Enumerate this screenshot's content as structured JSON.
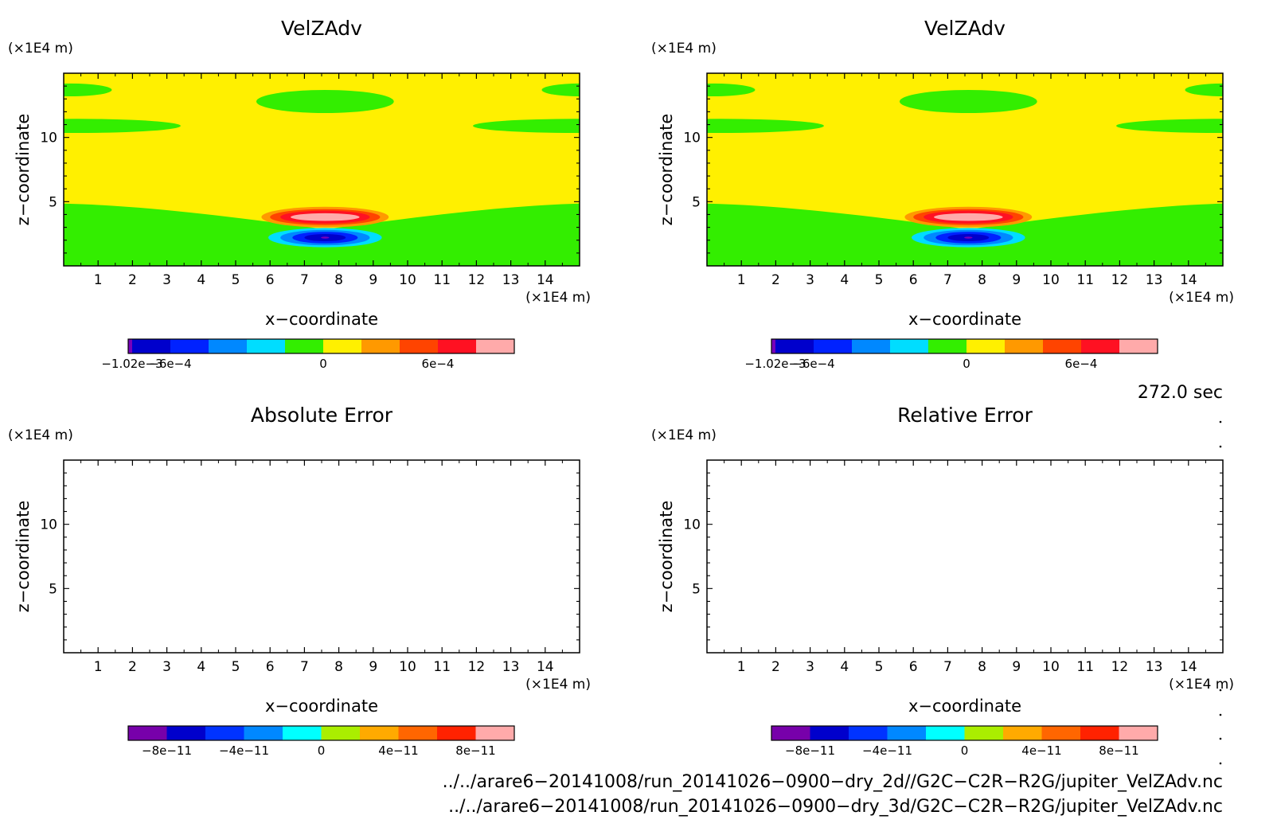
{
  "chart_data": [
    {
      "type": "heatmap",
      "title": "VelZAdv",
      "xlabel": "x−coordinate",
      "ylabel": "z−coordinate",
      "x_unit": "(×1E4 m)",
      "y_unit": "(×1E4 m)",
      "xlim": [
        0,
        15
      ],
      "ylim": [
        0,
        15
      ],
      "xticks": [
        "1",
        "2",
        "3",
        "4",
        "5",
        "6",
        "7",
        "8",
        "9",
        "10",
        "11",
        "12",
        "13",
        "14"
      ],
      "yticks": [
        "5",
        "10"
      ],
      "colorbar": {
        "ticks": [
          {
            "value": -0.00102,
            "label": "−1.02e−3"
          },
          {
            "value": -0.0006,
            "label": "−6e−4"
          },
          {
            "value": 0,
            "label": "0"
          },
          {
            "value": 0.0006,
            "label": "6e−4"
          }
        ]
      },
      "contours": [
        {
          "level": "0 to 1e-4",
          "color": "#fff000",
          "region": "upper domain background"
        },
        {
          "level": "-1e-4 to 0",
          "color": "#33ee00",
          "region": "lower domain and upper patches"
        },
        {
          "level": "positive maximum",
          "color": "#ffaaaa",
          "center": [
            7.6,
            3.8
          ]
        },
        {
          "level": "negative minimum",
          "color": "#0000cc",
          "center": [
            7.6,
            2.2
          ]
        }
      ],
      "max": 0.0009,
      "min": -0.00102
    },
    {
      "type": "heatmap",
      "title": "VelZAdv",
      "xlabel": "x−coordinate",
      "ylabel": "z−coordinate",
      "x_unit": "(×1E4 m)",
      "y_unit": "(×1E4 m)",
      "xlim": [
        0,
        15
      ],
      "ylim": [
        0,
        15
      ],
      "xticks": [
        "1",
        "2",
        "3",
        "4",
        "5",
        "6",
        "7",
        "8",
        "9",
        "10",
        "11",
        "12",
        "13",
        "14"
      ],
      "yticks": [
        "5",
        "10"
      ],
      "colorbar": {
        "ticks": [
          {
            "value": -0.00102,
            "label": "−1.02e−3"
          },
          {
            "value": -0.0006,
            "label": "−6e−4"
          },
          {
            "value": 0,
            "label": "0"
          },
          {
            "value": 0.0006,
            "label": "6e−4"
          }
        ]
      },
      "contours": [
        {
          "level": "0 to 1e-4",
          "color": "#fff000",
          "region": "upper domain background"
        },
        {
          "level": "-1e-4 to 0",
          "color": "#33ee00",
          "region": "lower domain and upper patches"
        },
        {
          "level": "positive maximum",
          "color": "#ffaaaa",
          "center": [
            7.6,
            3.8
          ]
        },
        {
          "level": "negative minimum",
          "color": "#0000cc",
          "center": [
            7.6,
            2.2
          ]
        }
      ],
      "max": 0.0009,
      "min": -0.00102
    },
    {
      "type": "heatmap",
      "title": "Absolute Error",
      "xlabel": "x−coordinate",
      "ylabel": "z−coordinate",
      "x_unit": "(×1E4 m)",
      "y_unit": "(×1E4 m)",
      "xlim": [
        0,
        15
      ],
      "ylim": [
        0,
        15
      ],
      "xticks": [
        "1",
        "2",
        "3",
        "4",
        "5",
        "6",
        "7",
        "8",
        "9",
        "10",
        "11",
        "12",
        "13",
        "14"
      ],
      "yticks": [
        "5",
        "10"
      ],
      "colorbar": {
        "ticks": [
          {
            "value": -8e-11,
            "label": "−8e−11"
          },
          {
            "value": -4e-11,
            "label": "−4e−11"
          },
          {
            "value": 0,
            "label": "0"
          },
          {
            "value": 4e-11,
            "label": "4e−11"
          },
          {
            "value": 8e-11,
            "label": "8e−11"
          }
        ]
      },
      "values": "empty (no contours drawn)"
    },
    {
      "type": "heatmap",
      "title": "Relative Error",
      "xlabel": "x−coordinate",
      "ylabel": "z−coordinate",
      "x_unit": "(×1E4 m)",
      "y_unit": "(×1E4 m)",
      "xlim": [
        0,
        15
      ],
      "ylim": [
        0,
        15
      ],
      "xticks": [
        "1",
        "2",
        "3",
        "4",
        "5",
        "6",
        "7",
        "8",
        "9",
        "10",
        "11",
        "12",
        "13",
        "14"
      ],
      "yticks": [
        "5",
        "10"
      ],
      "colorbar": {
        "ticks": [
          {
            "value": -8e-11,
            "label": "−8e−11"
          },
          {
            "value": -4e-11,
            "label": "−4e−11"
          },
          {
            "value": 0,
            "label": "0"
          },
          {
            "value": 4e-11,
            "label": "4e−11"
          },
          {
            "value": 8e-11,
            "label": "8e−11"
          }
        ]
      },
      "values": "empty (no contours drawn)"
    }
  ],
  "colorbar_main": {
    "colors": [
      "#7700bb",
      "#0000cc",
      "#0022ff",
      "#0088ff",
      "#00ddff",
      "#33ee00",
      "#fff000",
      "#ff9900",
      "#ff4400",
      "#ff1122",
      "#ffaaaa"
    ]
  },
  "colorbar_error": {
    "colors": [
      "#7700aa",
      "#0000cc",
      "#0033ff",
      "#0088ff",
      "#00ffff",
      "#aaee00",
      "#ffaa00",
      "#ff6600",
      "#ff2200",
      "#ffaaaa"
    ]
  },
  "time_label": "272.0 sec",
  "file_paths": [
    "../../arare6−20141008/run_20141026−0900−dry_2d//G2C−C2R−R2G/jupiter_VelZAdv.nc",
    "../../arare6−20141008/run_20141026−0900−dry_3d/G2C−C2R−R2G/jupiter_VelZAdv.nc"
  ]
}
